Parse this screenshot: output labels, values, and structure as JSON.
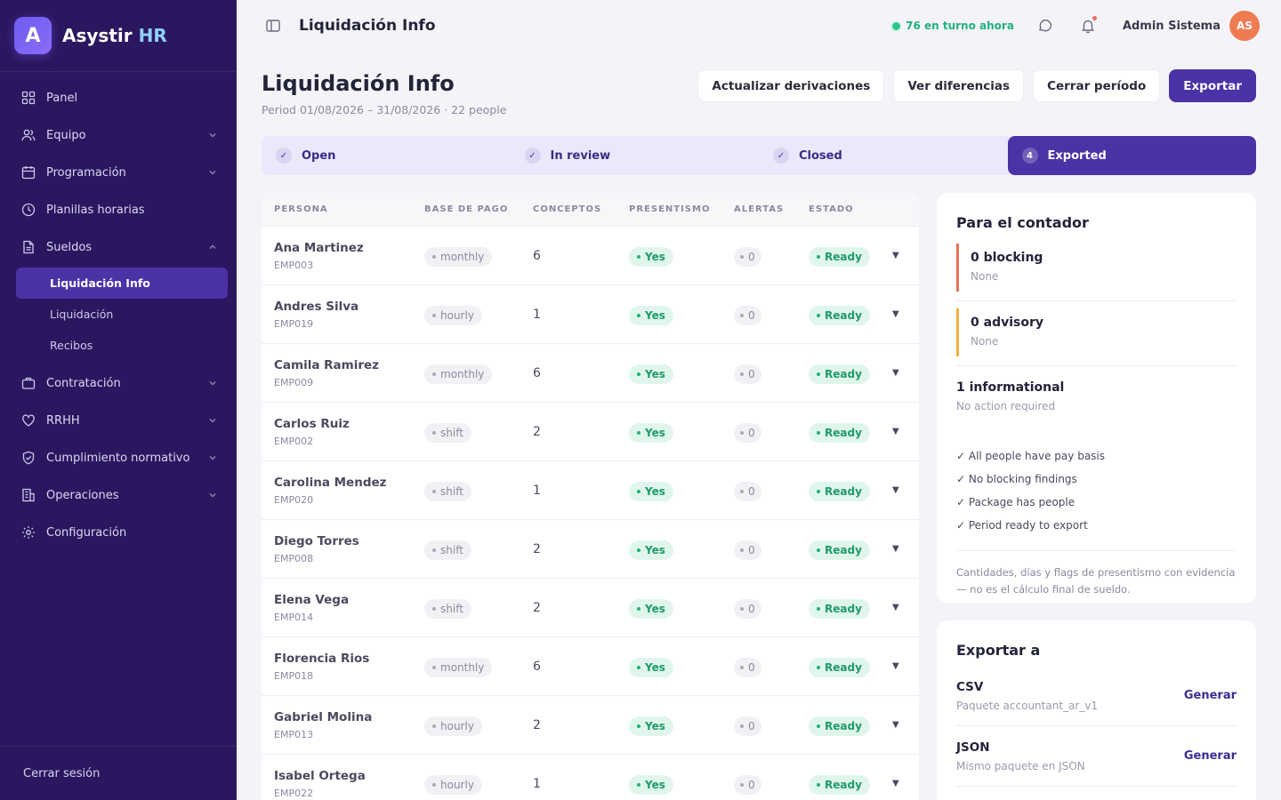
{
  "brand": {
    "logo_letter": "A",
    "name": "Asystir",
    "accent": "HR"
  },
  "sidebar": {
    "items": [
      {
        "label": "Panel",
        "icon": "grid-icon"
      },
      {
        "label": "Equipo",
        "icon": "users-icon"
      },
      {
        "label": "Programación",
        "icon": "calendar-icon"
      },
      {
        "label": "Planillas horarias",
        "icon": "clock-icon"
      },
      {
        "label": "Sueldos",
        "icon": "document-icon"
      },
      {
        "label": "Contratación",
        "icon": "briefcase-icon"
      },
      {
        "label": "RRHH",
        "icon": "heart-icon"
      },
      {
        "label": "Cumplimiento normativo",
        "icon": "shield-icon"
      },
      {
        "label": "Operaciones",
        "icon": "building-icon"
      },
      {
        "label": "Configuración",
        "icon": "gear-icon"
      }
    ],
    "sub_items": [
      "Liquidación Info",
      "Liquidación",
      "Recibos"
    ],
    "logout": "Cerrar sesión"
  },
  "topbar": {
    "title": "Liquidación Info",
    "shift_status": "76 en turno ahora",
    "user_name": "Admin Sistema",
    "user_initials": "AS"
  },
  "header": {
    "title": "Liquidación Info",
    "subtitle": "Period 01/08/2026 – 31/08/2026 · 22 people",
    "actions": [
      "Actualizar derivaciones",
      "Ver diferencias",
      "Cerrar período",
      "Exportar"
    ]
  },
  "stepper": {
    "steps": [
      {
        "mark": "✓",
        "label": "Open"
      },
      {
        "mark": "✓",
        "label": "In review"
      },
      {
        "mark": "✓",
        "label": "Closed"
      },
      {
        "mark": "4",
        "label": "Exported"
      }
    ]
  },
  "table": {
    "columns": [
      "PERSONA",
      "BASE DE PAGO",
      "CONCEPTOS",
      "PRESENTISMO",
      "ALERTAS",
      "ESTADO"
    ],
    "rows": [
      {
        "name": "Ana Martinez",
        "id": "EMP003",
        "basis": "monthly",
        "concepts": "6",
        "presentism": "Yes",
        "alerts": "0",
        "status": "Ready"
      },
      {
        "name": "Andres Silva",
        "id": "EMP019",
        "basis": "hourly",
        "concepts": "1",
        "presentism": "Yes",
        "alerts": "0",
        "status": "Ready"
      },
      {
        "name": "Camila Ramirez",
        "id": "EMP009",
        "basis": "monthly",
        "concepts": "6",
        "presentism": "Yes",
        "alerts": "0",
        "status": "Ready"
      },
      {
        "name": "Carlos Ruiz",
        "id": "EMP002",
        "basis": "shift",
        "concepts": "2",
        "presentism": "Yes",
        "alerts": "0",
        "status": "Ready"
      },
      {
        "name": "Carolina Mendez",
        "id": "EMP020",
        "basis": "shift",
        "concepts": "1",
        "presentism": "Yes",
        "alerts": "0",
        "status": "Ready"
      },
      {
        "name": "Diego Torres",
        "id": "EMP008",
        "basis": "shift",
        "concepts": "2",
        "presentism": "Yes",
        "alerts": "0",
        "status": "Ready"
      },
      {
        "name": "Elena Vega",
        "id": "EMP014",
        "basis": "shift",
        "concepts": "2",
        "presentism": "Yes",
        "alerts": "0",
        "status": "Ready"
      },
      {
        "name": "Florencia Rios",
        "id": "EMP018",
        "basis": "monthly",
        "concepts": "6",
        "presentism": "Yes",
        "alerts": "0",
        "status": "Ready"
      },
      {
        "name": "Gabriel Molina",
        "id": "EMP013",
        "basis": "hourly",
        "concepts": "2",
        "presentism": "Yes",
        "alerts": "0",
        "status": "Ready"
      },
      {
        "name": "Isabel Ortega",
        "id": "EMP022",
        "basis": "hourly",
        "concepts": "1",
        "presentism": "Yes",
        "alerts": "0",
        "status": "Ready"
      }
    ]
  },
  "accountant": {
    "title": "Para el contador",
    "blocking": {
      "title": "0 blocking",
      "sub": "None"
    },
    "advisory": {
      "title": "0 advisory",
      "sub": "None"
    },
    "informational": {
      "title": "1 informational",
      "sub": "No action required"
    },
    "checks": [
      "✓ All people have pay basis",
      "✓ No blocking findings",
      "✓ Package has people",
      "✓ Period ready to export"
    ],
    "note": "Cantidades, días y flags de presentismo con evidencia — no es el cálculo final de sueldo."
  },
  "export": {
    "title": "Exportar a",
    "items": [
      {
        "name": "CSV",
        "desc": "Paquete accountant_ar_v1",
        "action": "Generar"
      },
      {
        "name": "JSON",
        "desc": "Mismo paquete en JSON",
        "action": "Generar"
      }
    ]
  }
}
